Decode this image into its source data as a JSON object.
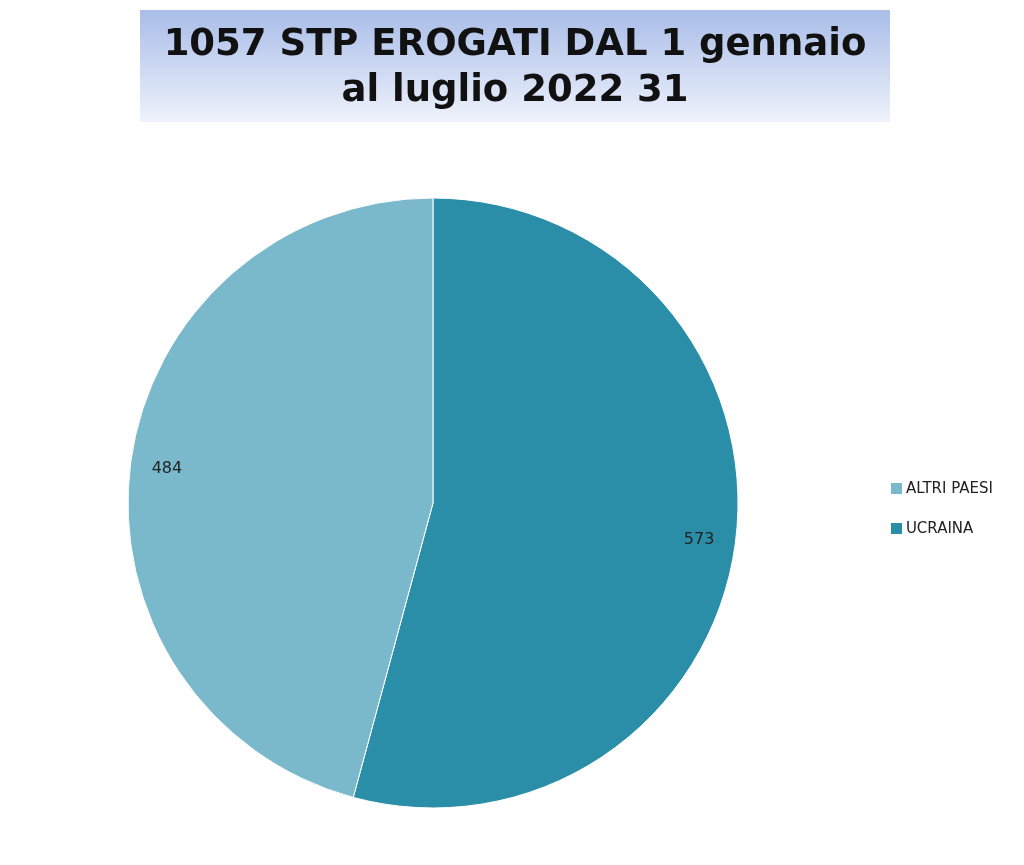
{
  "chart_data": {
    "type": "pie",
    "title": "1057 STP EROGATI DAL 1 gennaio al luglio 2022 31",
    "categories": [
      "UCRAINA",
      "ALTRI PAESI"
    ],
    "values": [
      573,
      484
    ],
    "colors": [
      "#2a8ea8",
      "#7ab8cc"
    ],
    "data_labels": true,
    "legend": "right"
  }
}
